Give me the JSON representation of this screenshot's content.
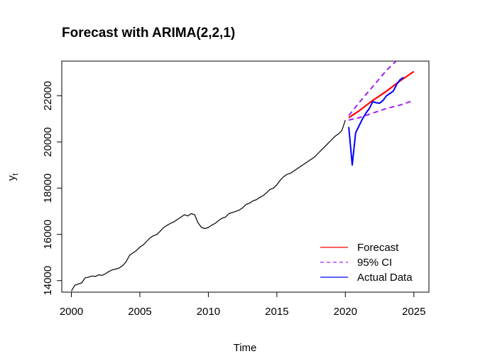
{
  "chart_data": {
    "type": "line",
    "title": "Forecast with ARIMA(2,2,1)",
    "xlabel": "Time",
    "ylabel": "y",
    "ylabel_subscript": "t",
    "xlim": [
      1999.3,
      2026.1
    ],
    "ylim": [
      13500,
      23500
    ],
    "xticks": [
      2000,
      2005,
      2010,
      2015,
      2020,
      2025
    ],
    "yticks": [
      14000,
      16000,
      18000,
      20000,
      22000
    ],
    "legend_position": "bottom-right",
    "legend": [
      {
        "label": "Forecast",
        "color": "#ff0000",
        "style": "solid"
      },
      {
        "label": "95% CI",
        "color": "#a020f0",
        "style": "dashed"
      },
      {
        "label": "Actual Data",
        "color": "#0000ff",
        "style": "solid"
      }
    ],
    "series": [
      {
        "role": "history",
        "color": "#000000",
        "style": "solid",
        "x": [
          2000.0,
          2000.25,
          2000.5,
          2000.75,
          2001.0,
          2001.25,
          2001.5,
          2001.75,
          2002.0,
          2002.25,
          2002.5,
          2002.75,
          2003.0,
          2003.25,
          2003.5,
          2003.75,
          2004.0,
          2004.25,
          2004.5,
          2004.75,
          2005.0,
          2005.25,
          2005.5,
          2005.75,
          2006.0,
          2006.25,
          2006.5,
          2006.75,
          2007.0,
          2007.25,
          2007.5,
          2007.75,
          2008.0,
          2008.25,
          2008.5,
          2008.75,
          2009.0,
          2009.25,
          2009.5,
          2009.75,
          2010.0,
          2010.25,
          2010.5,
          2010.75,
          2011.0,
          2011.25,
          2011.5,
          2011.75,
          2012.0,
          2012.25,
          2012.5,
          2012.75,
          2013.0,
          2013.25,
          2013.5,
          2013.75,
          2014.0,
          2014.25,
          2014.5,
          2014.75,
          2015.0,
          2015.25,
          2015.5,
          2015.75,
          2016.0,
          2016.25,
          2016.5,
          2016.75,
          2017.0,
          2017.25,
          2017.5,
          2017.75,
          2018.0,
          2018.25,
          2018.5,
          2018.75,
          2019.0,
          2019.25,
          2019.5,
          2019.75,
          2020.0
        ],
        "y": [
          13550,
          13800,
          13850,
          13900,
          14120,
          14150,
          14200,
          14180,
          14250,
          14230,
          14300,
          14400,
          14470,
          14500,
          14550,
          14650,
          14820,
          15100,
          15200,
          15300,
          15450,
          15550,
          15700,
          15850,
          15950,
          16000,
          16150,
          16300,
          16400,
          16480,
          16550,
          16650,
          16750,
          16850,
          16800,
          16900,
          16850,
          16500,
          16300,
          16250,
          16300,
          16400,
          16480,
          16600,
          16700,
          16750,
          16900,
          16950,
          17000,
          17050,
          17150,
          17300,
          17350,
          17450,
          17500,
          17600,
          17680,
          17800,
          17950,
          18000,
          18150,
          18350,
          18500,
          18600,
          18650,
          18750,
          18850,
          18950,
          19050,
          19150,
          19250,
          19350,
          19500,
          19650,
          19800,
          19950,
          20100,
          20250,
          20350,
          20500,
          20950
        ]
      },
      {
        "role": "forecast",
        "name": "Forecast",
        "color": "#ff0000",
        "style": "solid",
        "x": [
          2020.25,
          2021.0,
          2022.0,
          2023.0,
          2024.0,
          2025.0
        ],
        "y": [
          21050,
          21350,
          21800,
          22200,
          22650,
          23050
        ]
      },
      {
        "role": "ci_upper",
        "name": "95% CI",
        "color": "#a020f0",
        "style": "dashed",
        "x": [
          2020.25,
          2021.0,
          2022.0,
          2023.0,
          2023.7
        ],
        "y": [
          21150,
          21700,
          22400,
          23100,
          23500
        ]
      },
      {
        "role": "ci_lower",
        "name": "95% CI",
        "color": "#a020f0",
        "style": "dashed",
        "x": [
          2020.25,
          2021.0,
          2022.0,
          2023.0,
          2024.0,
          2025.0
        ],
        "y": [
          20950,
          21050,
          21250,
          21450,
          21600,
          21800
        ]
      },
      {
        "role": "actual",
        "name": "Actual Data",
        "color": "#0000ff",
        "style": "solid",
        "x": [
          2020.25,
          2020.5,
          2020.75,
          2021.0,
          2021.25,
          2021.5,
          2021.75,
          2022.0,
          2022.25,
          2022.5,
          2022.75,
          2023.0,
          2023.25,
          2023.5,
          2023.75,
          2024.0,
          2024.25
        ],
        "y": [
          20650,
          19000,
          20400,
          20700,
          21000,
          21250,
          21450,
          21750,
          21700,
          21680,
          21800,
          22000,
          22100,
          22200,
          22500,
          22700,
          22800
        ]
      }
    ]
  }
}
